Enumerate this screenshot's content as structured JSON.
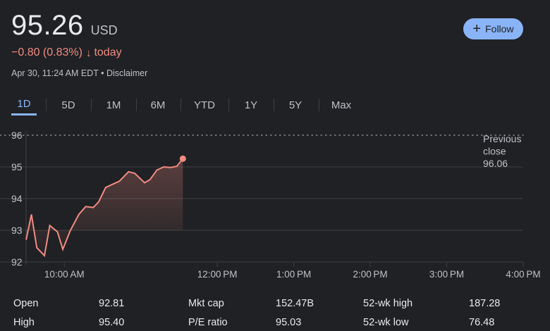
{
  "quote": {
    "price": "95.26",
    "currency": "USD",
    "change": "−0.80 (0.83%)",
    "change_suffix": "today",
    "timestamp": "Apr 30, 11:24 AM EDT • Disclaimer"
  },
  "follow_button": {
    "label": "Follow",
    "icon": "plus-icon"
  },
  "tabs": [
    {
      "label": "1D",
      "active": true
    },
    {
      "label": "5D",
      "active": false
    },
    {
      "label": "1M",
      "active": false
    },
    {
      "label": "6M",
      "active": false
    },
    {
      "label": "YTD",
      "active": false
    },
    {
      "label": "1Y",
      "active": false
    },
    {
      "label": "5Y",
      "active": false
    },
    {
      "label": "Max",
      "active": false
    }
  ],
  "colors": {
    "background": "#202124",
    "line": "#f28b82",
    "accent": "#8ab4f8",
    "grid": "#3c4043",
    "text_secondary": "#bdc1c6"
  },
  "chart_data": {
    "type": "line",
    "y_ticks": [
      "92",
      "93",
      "94",
      "95",
      "96"
    ],
    "ylim": [
      92,
      96
    ],
    "x_ticks": [
      {
        "label": "10:00 AM",
        "t": 10.0
      },
      {
        "label": "12:00 PM",
        "t": 12.0
      },
      {
        "label": "1:00 PM",
        "t": 13.0
      },
      {
        "label": "2:00 PM",
        "t": 14.0
      },
      {
        "label": "3:00 PM",
        "t": 15.0
      },
      {
        "label": "4:00 PM",
        "t": 16.0
      }
    ],
    "xlim": [
      9.5,
      16.0
    ],
    "previous_close": {
      "label_line1": "Previous",
      "label_line2": "close",
      "value_label": "96.06",
      "value": 96.06
    },
    "series": [
      {
        "x": [
          9.5,
          9.57,
          9.64,
          9.74,
          9.81,
          9.91,
          9.98,
          10.08,
          10.19,
          10.28,
          10.38,
          10.45,
          10.54,
          10.63,
          10.72,
          10.84,
          10.92,
          11.05,
          11.12,
          11.21,
          11.3,
          11.39,
          11.47,
          11.55
        ],
        "y": [
          92.7,
          93.5,
          92.45,
          92.2,
          93.15,
          92.95,
          92.4,
          93.0,
          93.5,
          93.75,
          93.72,
          93.9,
          94.35,
          94.45,
          94.55,
          94.85,
          94.8,
          94.5,
          94.6,
          94.9,
          95.0,
          94.98,
          95.02,
          95.26
        ]
      }
    ]
  },
  "stats": [
    {
      "label": "Open",
      "value": "92.81"
    },
    {
      "label": "High",
      "value": "95.40"
    },
    {
      "label": "Mkt cap",
      "value": "152.47B"
    },
    {
      "label": "P/E ratio",
      "value": "95.03"
    },
    {
      "label": "52-wk high",
      "value": "187.28"
    },
    {
      "label": "52-wk low",
      "value": "76.48"
    }
  ]
}
